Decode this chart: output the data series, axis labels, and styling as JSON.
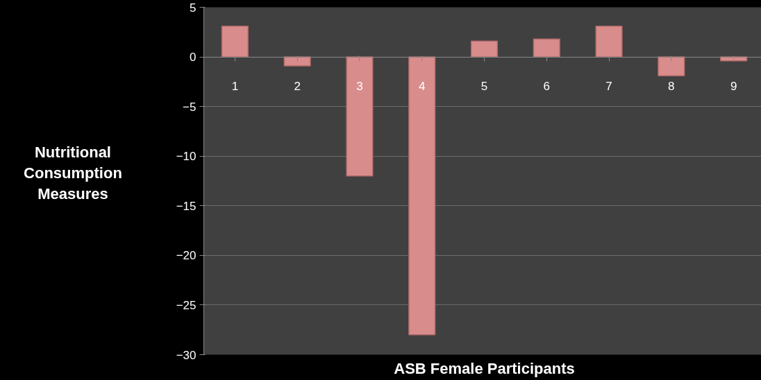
{
  "chart_data": {
    "type": "bar",
    "xlabel": "ASB Female Participants",
    "ylabel": "Nutritional Consumption Measures",
    "categories": [
      "1",
      "2",
      "3",
      "4",
      "5",
      "6",
      "7",
      "8",
      "9"
    ],
    "values": [
      3.1,
      -0.9,
      -12,
      -28,
      1.6,
      1.8,
      3.1,
      -1.9,
      -0.4
    ],
    "color": "#d98c8c",
    "ylim": [
      -30,
      5
    ],
    "yticks": [
      5,
      0,
      -5,
      -10,
      -15,
      -20,
      -25,
      -30
    ],
    "grid": "y",
    "legend": false
  }
}
